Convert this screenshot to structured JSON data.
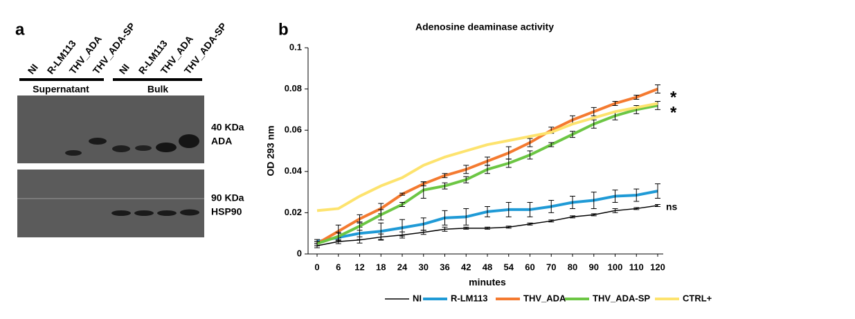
{
  "panel_a": {
    "label": "a",
    "lanes": [
      "NI",
      "R-LM113",
      "THV_ADA",
      "THV_ADA-SP"
    ],
    "groups": [
      "Supernatant",
      "Bulk"
    ],
    "markers": [
      "40 KDa",
      "ADA",
      "90 KDa",
      "HSP90"
    ]
  },
  "chart_data": {
    "type": "line",
    "panel_label": "b",
    "title": "Adenosine deaminase activity",
    "x_label": "minutes",
    "y_label": "OD 293 nm",
    "categories": [
      "0",
      "6",
      "12",
      "18",
      "24",
      "30",
      "36",
      "42",
      "48",
      "54",
      "60",
      "70",
      "80",
      "90",
      "100",
      "110",
      "120"
    ],
    "series": [
      {
        "name": "NI",
        "color": "#000000",
        "values": [
          0.004,
          0.006,
          0.0068,
          0.0082,
          0.0092,
          0.0105,
          0.012,
          0.0125,
          0.0125,
          0.013,
          0.0145,
          0.016,
          0.018,
          0.019,
          0.021,
          0.022,
          0.0235
        ],
        "errors": [
          0.001,
          0.001,
          0.0015,
          0.0015,
          0.0015,
          0.001,
          0.001,
          0.0005,
          0.0005,
          0.0005,
          0.0005,
          0.0005,
          0.0005,
          0.0005,
          0.001,
          0.0005,
          0.0005
        ]
      },
      {
        "name": "R-LM113",
        "color": "#1f9ad6",
        "values": [
          0.006,
          0.008,
          0.01,
          0.011,
          0.0127,
          0.0145,
          0.0175,
          0.018,
          0.0205,
          0.0215,
          0.0215,
          0.023,
          0.025,
          0.026,
          0.028,
          0.0285,
          0.0305
        ],
        "errors": [
          0.001,
          0.002,
          0.003,
          0.004,
          0.004,
          0.003,
          0.0035,
          0.004,
          0.0025,
          0.0035,
          0.0035,
          0.003,
          0.003,
          0.004,
          0.003,
          0.003,
          0.0035
        ]
      },
      {
        "name": "THV_ADA",
        "color": "#f47a30",
        "values": [
          0.005,
          0.011,
          0.017,
          0.022,
          0.029,
          0.034,
          0.038,
          0.041,
          0.045,
          0.049,
          0.054,
          0.06,
          0.065,
          0.069,
          0.073,
          0.076,
          0.08
        ],
        "errors": [
          0.001,
          0.003,
          0.002,
          0.0025,
          0.0005,
          0.001,
          0.001,
          0.002,
          0.002,
          0.003,
          0.002,
          0.0015,
          0.002,
          0.002,
          0.001,
          0.001,
          0.002
        ]
      },
      {
        "name": "THV_ADA-SP",
        "color": "#6cc644",
        "values": [
          0.005,
          0.0085,
          0.0135,
          0.019,
          0.024,
          0.031,
          0.033,
          0.036,
          0.041,
          0.044,
          0.048,
          0.053,
          0.058,
          0.063,
          0.067,
          0.07,
          0.072
        ],
        "errors": [
          0.001,
          0.002,
          0.002,
          0.0025,
          0.001,
          0.004,
          0.0015,
          0.0015,
          0.002,
          0.002,
          0.002,
          0.001,
          0.0015,
          0.002,
          0.002,
          0.002,
          0.002
        ]
      },
      {
        "name": "CTRL+",
        "color": "#fde36e",
        "values": [
          0.021,
          0.022,
          0.028,
          0.033,
          0.037,
          0.043,
          0.047,
          0.05,
          0.053,
          0.055,
          0.057,
          0.059,
          0.063,
          0.066,
          0.069,
          0.071,
          0.073
        ]
      }
    ],
    "ylim": [
      0,
      0.1
    ],
    "yticks": [
      0,
      0.02,
      0.04,
      0.06,
      0.08,
      0.1
    ],
    "annotations": [
      "*",
      "*",
      "ns"
    ],
    "legend": "bottom"
  }
}
